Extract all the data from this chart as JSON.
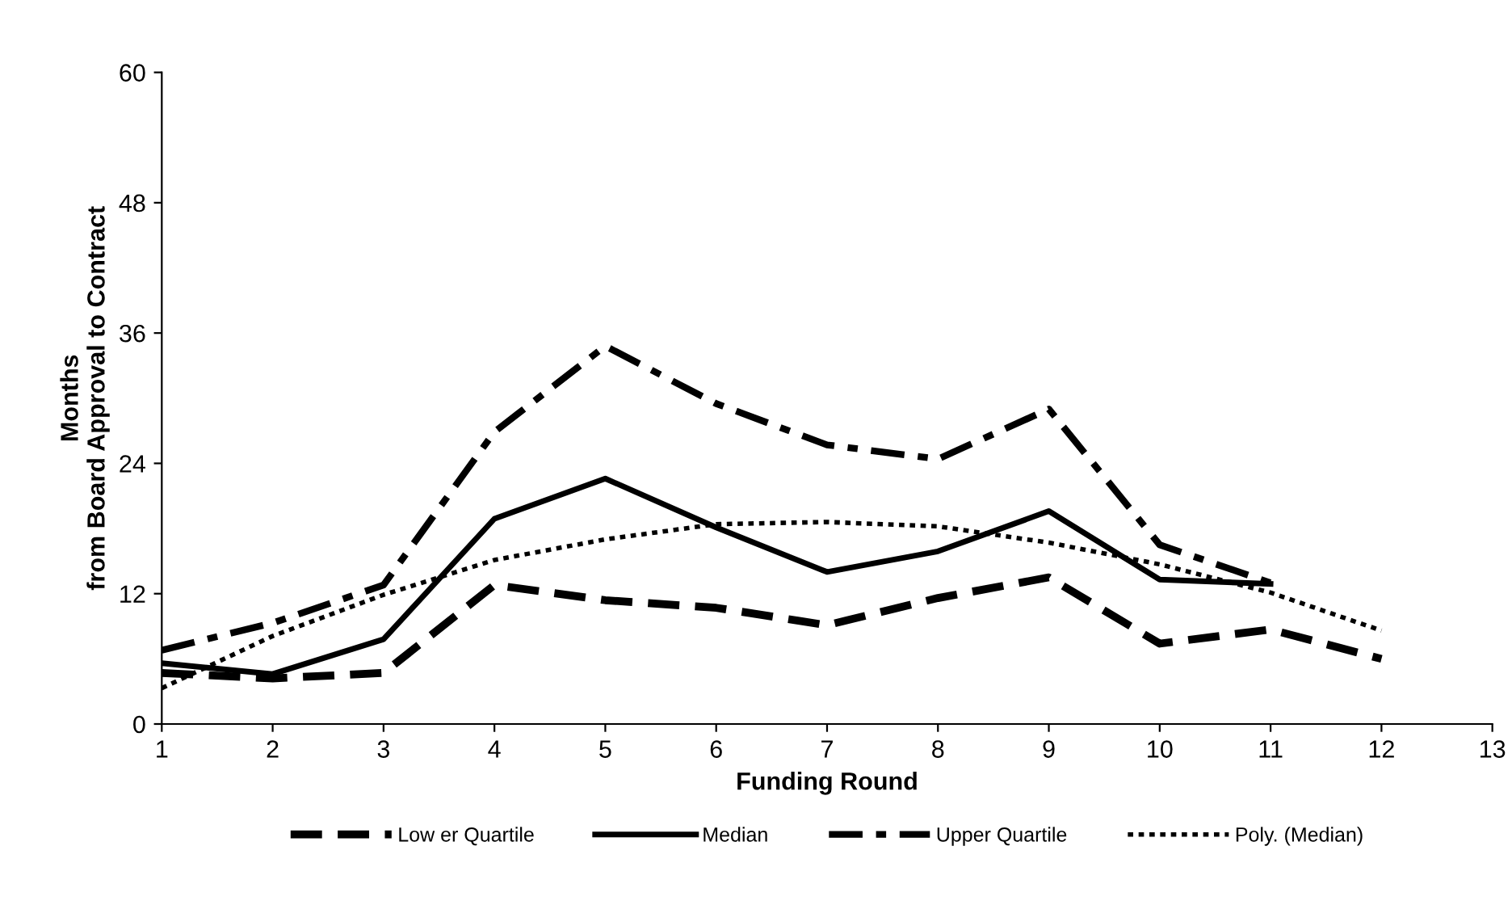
{
  "chart_data": {
    "type": "line",
    "xlabel": "Funding Round",
    "ylabel": "Months\nfrom Board Approval to Contract",
    "xlim": [
      1,
      13
    ],
    "xticks": [
      1,
      2,
      3,
      4,
      5,
      6,
      7,
      8,
      9,
      10,
      11,
      12,
      13
    ],
    "ylim": [
      0,
      60
    ],
    "yticks": [
      0,
      12,
      24,
      36,
      48,
      60
    ],
    "grid": false,
    "legend": "bottom",
    "marker": "none",
    "series": [
      {
        "name": "Low er Quartile",
        "color": "#000000",
        "line_style": "dashed",
        "x": [
          1,
          2,
          3,
          4,
          5,
          6,
          7,
          8,
          9,
          10,
          11,
          12
        ],
        "values": [
          4.7,
          4.2,
          4.7,
          12.8,
          11.4,
          10.7,
          9.1,
          11.6,
          13.5,
          7.4,
          8.7,
          6.0
        ]
      },
      {
        "name": "Median",
        "color": "#000000",
        "line_style": "solid",
        "x": [
          1,
          2,
          3,
          4,
          5,
          6,
          7,
          8,
          9,
          10,
          11
        ],
        "values": [
          5.6,
          4.6,
          7.8,
          18.9,
          22.6,
          18.1,
          14.0,
          15.9,
          19.6,
          13.3,
          12.9
        ]
      },
      {
        "name": "Upper Quartile",
        "color": "#000000",
        "line_style": "dashdot",
        "x": [
          1,
          2,
          3,
          4,
          5,
          6,
          7,
          8,
          9,
          10,
          11
        ],
        "values": [
          6.8,
          9.3,
          12.8,
          26.9,
          34.8,
          29.5,
          25.7,
          24.4,
          29.0,
          16.5,
          13.0
        ]
      },
      {
        "name": "Poly. (Median)",
        "color": "#000000",
        "line_style": "dotted",
        "x": [
          1,
          2,
          3,
          4,
          5,
          6,
          7,
          8,
          9,
          10,
          11,
          12
        ],
        "values": [
          3.3,
          8.1,
          11.9,
          15.1,
          17.0,
          18.4,
          18.6,
          18.2,
          16.7,
          14.7,
          12.1,
          8.6
        ]
      }
    ]
  }
}
